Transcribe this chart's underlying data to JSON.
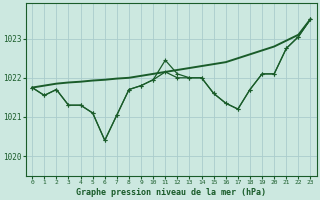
{
  "title": "Graphe pression niveau de la mer (hPa)",
  "bg_color": "#cce8e0",
  "grid_color": "#aacccc",
  "line_color": "#1a5c2a",
  "xlim": [
    -0.5,
    23.5
  ],
  "ylim": [
    1019.5,
    1023.9
  ],
  "yticks": [
    1020,
    1021,
    1022,
    1023
  ],
  "x_labels": [
    "0",
    "1",
    "2",
    "3",
    "4",
    "5",
    "6",
    "7",
    "8",
    "9",
    "10",
    "11",
    "12",
    "13",
    "14",
    "15",
    "16",
    "17",
    "18",
    "19",
    "20",
    "21",
    "22",
    "23"
  ],
  "y_main": [
    1021.75,
    1021.55,
    1021.7,
    1021.3,
    1021.3,
    1021.1,
    1020.4,
    1021.05,
    1021.7,
    1021.8,
    1021.95,
    1022.45,
    1022.1,
    1022.0,
    1022.0,
    1021.6,
    1021.35,
    1021.2,
    1021.7,
    1022.1,
    1022.1,
    1022.75,
    1023.05,
    1023.5
  ],
  "y_second": [
    1021.75,
    1021.55,
    1021.7,
    1021.3,
    1021.3,
    1021.1,
    1020.4,
    1021.05,
    1021.7,
    1021.8,
    1021.95,
    1022.15,
    1022.0,
    1022.0,
    1022.0,
    1021.6,
    1021.35,
    1021.2,
    1021.7,
    1022.1,
    1022.1,
    1022.75,
    1023.05,
    1023.5
  ],
  "y_smooth": [
    1021.75,
    1021.8,
    1021.85,
    1021.88,
    1021.9,
    1021.93,
    1021.95,
    1021.98,
    1022.0,
    1022.05,
    1022.1,
    1022.15,
    1022.2,
    1022.25,
    1022.3,
    1022.35,
    1022.4,
    1022.5,
    1022.6,
    1022.7,
    1022.8,
    1022.95,
    1023.1,
    1023.5
  ],
  "figwidth": 3.2,
  "figheight": 2.0,
  "dpi": 100
}
